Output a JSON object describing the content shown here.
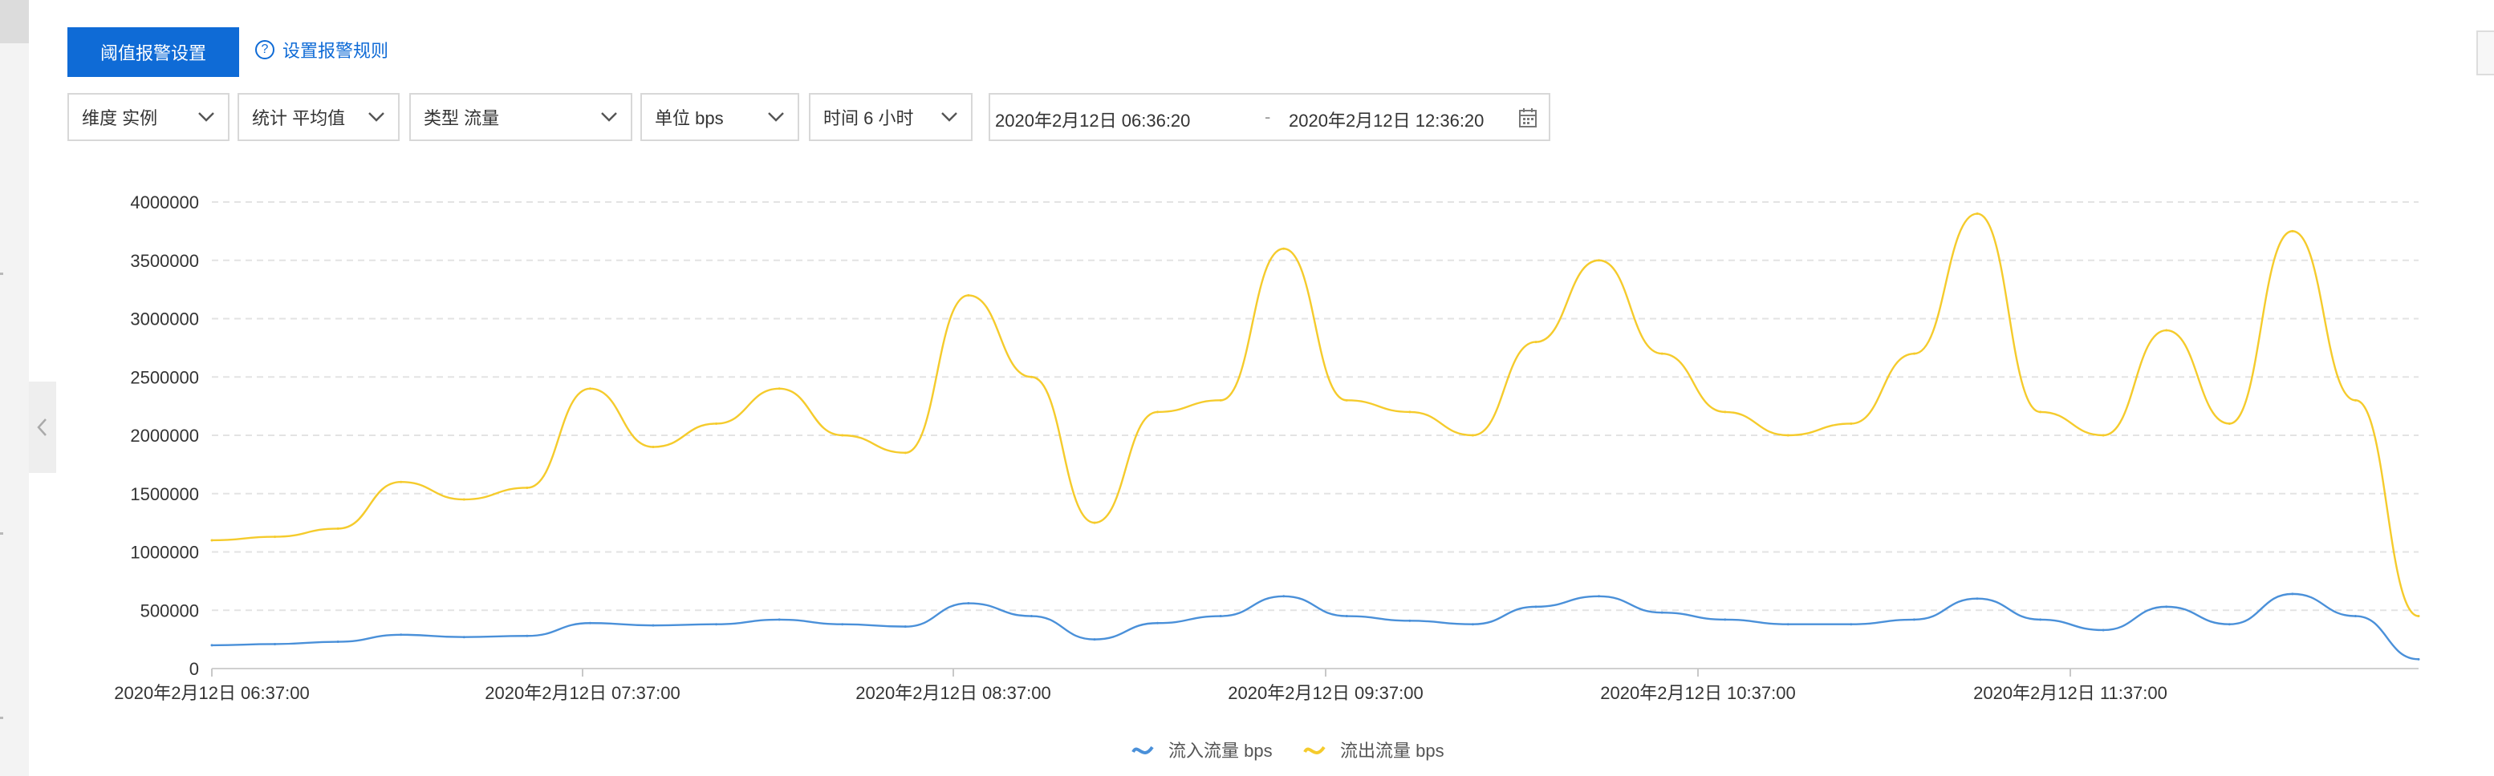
{
  "toolbar": {
    "alarm_settings_button": "阈值报警设置",
    "rules_link": "设置报警规则",
    "filters": [
      {
        "label": "维度 实例"
      },
      {
        "label": "统计 平均值"
      },
      {
        "label": "类型 流量"
      },
      {
        "label": "单位 bps"
      },
      {
        "label": "时间 6 小时"
      }
    ],
    "range_start": "2020年2月12日 06:36:20",
    "range_sep": "-",
    "range_end": "2020年2月12日 12:36:20"
  },
  "icons": {
    "help": "question-circle-icon",
    "dropdown": "chevron-down-icon",
    "calendar": "calendar-icon",
    "collapse": "chevron-left-icon"
  },
  "colors": {
    "accent": "#0f6bd6",
    "inflow": "#4a90d9",
    "outflow": "#f5cb2c"
  },
  "chart_data": {
    "type": "line",
    "ylim": [
      0,
      4000000
    ],
    "yticks": [
      0,
      500000,
      1000000,
      1500000,
      2000000,
      2500000,
      3000000,
      3500000,
      4000000
    ],
    "ytick_labels": [
      "0",
      "500000",
      "1000000",
      "1500000",
      "2000000",
      "2500000",
      "3000000",
      "3500000",
      "4000000"
    ],
    "xticks": [
      "2020年2月12日 06:37:00",
      "2020年2月12日 07:37:00",
      "2020年2月12日 08:37:00",
      "2020年2月12日 09:37:00",
      "2020年2月12日 10:37:00",
      "2020年2月12日 11:37:00"
    ],
    "x": [
      "06:37",
      "06:47",
      "06:57",
      "07:07",
      "07:17",
      "07:27",
      "07:37",
      "07:47",
      "07:57",
      "08:07",
      "08:17",
      "08:27",
      "08:37",
      "08:47",
      "08:57",
      "09:07",
      "09:17",
      "09:27",
      "09:37",
      "09:47",
      "09:57",
      "10:07",
      "10:17",
      "10:27",
      "10:37",
      "10:47",
      "10:57",
      "11:07",
      "11:17",
      "11:37",
      "11:47",
      "11:57",
      "12:07",
      "12:17",
      "12:27",
      "12:37"
    ],
    "series": [
      {
        "name": "流入流量 bps",
        "color": "#4a90d9",
        "values": [
          200000,
          210000,
          230000,
          290000,
          270000,
          280000,
          390000,
          370000,
          380000,
          420000,
          380000,
          360000,
          560000,
          450000,
          250000,
          390000,
          450000,
          620000,
          450000,
          410000,
          380000,
          530000,
          620000,
          480000,
          420000,
          380000,
          380000,
          420000,
          600000,
          420000,
          330000,
          530000,
          380000,
          640000,
          450000,
          80000
        ]
      },
      {
        "name": "流出流量 bps",
        "color": "#f5cb2c",
        "values": [
          1100000,
          1130000,
          1200000,
          1600000,
          1450000,
          1550000,
          2400000,
          1900000,
          2100000,
          2400000,
          2000000,
          1850000,
          3200000,
          2500000,
          1250000,
          2200000,
          2300000,
          3600000,
          2300000,
          2200000,
          2000000,
          2800000,
          3500000,
          2700000,
          2200000,
          2000000,
          2100000,
          2700000,
          3900000,
          2200000,
          2000000,
          2900000,
          2100000,
          3750000,
          2300000,
          450000
        ]
      }
    ]
  }
}
